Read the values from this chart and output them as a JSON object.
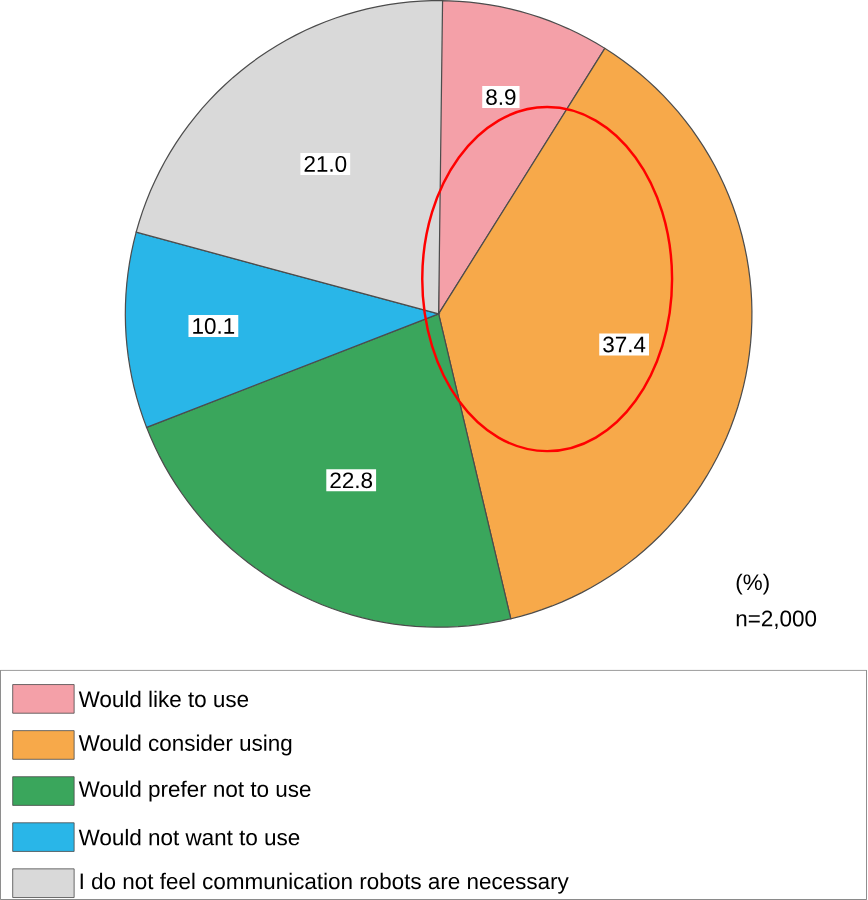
{
  "chart_data": {
    "type": "pie",
    "categories": [
      "Would like to use",
      "Would consider using",
      "Would prefer not to use",
      "Would not want to use",
      "I do not feel communication robots are necessary"
    ],
    "values": [
      8.9,
      37.4,
      22.8,
      10.1,
      21.0
    ],
    "colors": [
      "#f4a0a8",
      "#f7a94a",
      "#3aa65c",
      "#29b6e8",
      "#d9d9d9"
    ],
    "value_labels": [
      "8.9",
      "37.4",
      "22.8",
      "10.1",
      "21.0"
    ],
    "legend": "bottom",
    "annotations": [
      "(%)",
      "n=2,000"
    ]
  }
}
